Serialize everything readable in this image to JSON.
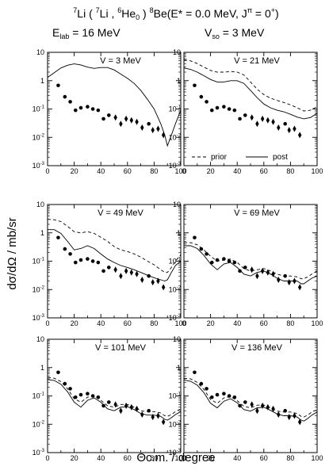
{
  "title": {
    "line1": {
      "sup_a": "7",
      "a": "Li ( ",
      "sup_b": "7",
      "b": "Li , ",
      "sup_c": "6",
      "c": "He",
      "sub_c": "0",
      "d": " ) ",
      "sup_e": "8",
      "e": "Be(E* = 0.0 MeV, J",
      "sup_f": "π",
      "f": " = 0",
      "sup_g": "+",
      "g": ")"
    },
    "line2": {
      "a": "E",
      "sub_a": "lab",
      "b": " = 16 MeV",
      "c": "V",
      "sub_c": "so",
      "d": " = 3 MeV"
    }
  },
  "y_axis_label": "dσ/dΩ  /  mb/sr",
  "x_axis_label": "Θc.m. / degree",
  "legend": {
    "prior": "prior",
    "post": "post"
  },
  "colors": {
    "ink": "#000000",
    "background": "#ffffff"
  },
  "chart_data": [
    {
      "type": "line",
      "label": "V = 3 MeV",
      "xlim": [
        0,
        100
      ],
      "ylim": [
        0.001,
        10
      ],
      "yscale": "log",
      "xticks": [
        0,
        20,
        40,
        60,
        80,
        100
      ],
      "yticks": [
        0.001,
        0.01,
        0.1,
        1,
        10
      ],
      "ytick_labels": [
        "10-3",
        "10-2",
        "10-1",
        "1",
        "10"
      ],
      "data_points": [
        [
          8,
          0.68
        ],
        [
          13,
          0.27
        ],
        [
          17,
          0.18
        ],
        [
          21,
          0.09
        ],
        [
          25,
          0.11
        ],
        [
          30,
          0.12
        ],
        [
          34,
          0.1
        ],
        [
          38,
          0.09
        ],
        [
          42,
          0.045
        ],
        [
          46,
          0.06
        ],
        [
          51,
          0.05
        ],
        [
          55,
          0.03
        ],
        [
          59,
          0.045
        ],
        [
          63,
          0.04
        ],
        [
          67,
          0.035
        ],
        [
          71,
          0.022
        ],
        [
          76,
          0.03
        ],
        [
          79,
          0.018
        ],
        [
          83,
          0.02
        ],
        [
          87,
          0.012
        ]
      ],
      "series": [
        {
          "name": "post",
          "dash": "solid",
          "x": [
            0,
            5,
            10,
            15,
            20,
            25,
            30,
            35,
            40,
            45,
            50,
            55,
            60,
            65,
            70,
            75,
            80,
            85,
            88,
            90,
            93,
            96,
            100
          ],
          "y": [
            1.3,
            1.9,
            2.8,
            3.5,
            3.9,
            3.6,
            3.0,
            2.7,
            2.9,
            2.9,
            2.4,
            1.7,
            1.2,
            0.8,
            0.45,
            0.22,
            0.1,
            0.03,
            0.012,
            0.005,
            0.012,
            0.03,
            0.09
          ]
        }
      ]
    },
    {
      "type": "line",
      "label": "V = 21 MeV",
      "xlim": [
        0,
        100
      ],
      "ylim": [
        0.001,
        10
      ],
      "yscale": "log",
      "xticks": [
        0,
        20,
        40,
        60,
        80,
        100
      ],
      "yticks": [
        0.001,
        0.01,
        0.1,
        1,
        10
      ],
      "ytick_labels": [
        "10-3",
        "10-2",
        "10-1",
        "1",
        "10"
      ],
      "legend": true,
      "data_points": [
        [
          8,
          0.68
        ],
        [
          13,
          0.27
        ],
        [
          17,
          0.18
        ],
        [
          21,
          0.09
        ],
        [
          25,
          0.11
        ],
        [
          30,
          0.12
        ],
        [
          34,
          0.1
        ],
        [
          38,
          0.09
        ],
        [
          42,
          0.045
        ],
        [
          46,
          0.06
        ],
        [
          51,
          0.05
        ],
        [
          55,
          0.03
        ],
        [
          59,
          0.045
        ],
        [
          63,
          0.04
        ],
        [
          67,
          0.035
        ],
        [
          71,
          0.022
        ],
        [
          76,
          0.03
        ],
        [
          79,
          0.018
        ],
        [
          83,
          0.02
        ],
        [
          87,
          0.012
        ]
      ],
      "series": [
        {
          "name": "prior",
          "dash": "dashed",
          "x": [
            0,
            5,
            10,
            15,
            20,
            25,
            30,
            35,
            40,
            45,
            50,
            55,
            60,
            65,
            70,
            75,
            80,
            85,
            90,
            95,
            100
          ],
          "y": [
            5.5,
            5.0,
            4.0,
            3.0,
            2.3,
            2.0,
            2.0,
            2.1,
            2.0,
            1.6,
            0.9,
            0.5,
            0.32,
            0.24,
            0.2,
            0.17,
            0.14,
            0.11,
            0.085,
            0.09,
            0.12
          ]
        },
        {
          "name": "post",
          "dash": "solid",
          "x": [
            0,
            5,
            10,
            15,
            20,
            25,
            30,
            35,
            40,
            45,
            50,
            55,
            60,
            65,
            70,
            75,
            80,
            85,
            90,
            95,
            100
          ],
          "y": [
            2.8,
            2.5,
            2.0,
            1.5,
            1.1,
            0.9,
            0.9,
            1.0,
            1.0,
            0.8,
            0.45,
            0.25,
            0.15,
            0.11,
            0.09,
            0.08,
            0.065,
            0.052,
            0.045,
            0.05,
            0.07
          ]
        }
      ]
    },
    {
      "type": "line",
      "label": "V = 49 MeV",
      "xlim": [
        0,
        100
      ],
      "ylim": [
        0.001,
        10
      ],
      "yscale": "log",
      "xticks": [
        0,
        20,
        40,
        60,
        80,
        100
      ],
      "yticks": [
        0.001,
        0.01,
        0.1,
        1,
        10
      ],
      "ytick_labels": [
        "10-3",
        "10-2",
        "10-1",
        "1",
        "10"
      ],
      "data_points": [
        [
          8,
          0.68
        ],
        [
          13,
          0.27
        ],
        [
          17,
          0.18
        ],
        [
          21,
          0.09
        ],
        [
          25,
          0.11
        ],
        [
          30,
          0.12
        ],
        [
          34,
          0.1
        ],
        [
          38,
          0.09
        ],
        [
          42,
          0.045
        ],
        [
          46,
          0.06
        ],
        [
          51,
          0.05
        ],
        [
          55,
          0.03
        ],
        [
          59,
          0.045
        ],
        [
          63,
          0.04
        ],
        [
          67,
          0.035
        ],
        [
          71,
          0.022
        ],
        [
          76,
          0.03
        ],
        [
          79,
          0.018
        ],
        [
          83,
          0.02
        ],
        [
          87,
          0.012
        ]
      ],
      "series": [
        {
          "name": "prior",
          "dash": "dashed",
          "x": [
            0,
            5,
            10,
            15,
            20,
            25,
            30,
            35,
            40,
            45,
            50,
            55,
            60,
            65,
            70,
            75,
            80,
            85,
            88,
            90,
            93,
            96,
            100
          ],
          "y": [
            3.0,
            2.9,
            2.5,
            1.7,
            1.1,
            1.0,
            1.1,
            0.95,
            0.7,
            0.5,
            0.33,
            0.25,
            0.22,
            0.18,
            0.14,
            0.1,
            0.075,
            0.05,
            0.04,
            0.04,
            0.06,
            0.1,
            0.17
          ]
        },
        {
          "name": "post",
          "dash": "solid",
          "x": [
            0,
            5,
            10,
            15,
            20,
            25,
            30,
            35,
            40,
            45,
            50,
            55,
            60,
            65,
            70,
            75,
            80,
            85,
            88,
            90,
            93,
            96,
            100
          ],
          "y": [
            1.3,
            1.3,
            0.95,
            0.5,
            0.25,
            0.28,
            0.35,
            0.28,
            0.18,
            0.12,
            0.09,
            0.07,
            0.06,
            0.05,
            0.04,
            0.032,
            0.026,
            0.022,
            0.02,
            0.022,
            0.04,
            0.07,
            0.1
          ]
        }
      ]
    },
    {
      "type": "line",
      "label": "V = 69 MeV",
      "xlim": [
        0,
        100
      ],
      "ylim": [
        0.001,
        10
      ],
      "yscale": "log",
      "xticks": [
        0,
        20,
        40,
        60,
        80,
        100
      ],
      "yticks": [
        0.001,
        0.01,
        0.1,
        1,
        10
      ],
      "ytick_labels": [
        "10-3",
        "10-2",
        "10-1",
        "1",
        "10"
      ],
      "data_points": [
        [
          8,
          0.68
        ],
        [
          13,
          0.27
        ],
        [
          17,
          0.18
        ],
        [
          21,
          0.09
        ],
        [
          25,
          0.11
        ],
        [
          30,
          0.12
        ],
        [
          34,
          0.1
        ],
        [
          38,
          0.09
        ],
        [
          42,
          0.045
        ],
        [
          46,
          0.06
        ],
        [
          51,
          0.05
        ],
        [
          55,
          0.03
        ],
        [
          59,
          0.045
        ],
        [
          63,
          0.04
        ],
        [
          67,
          0.035
        ],
        [
          71,
          0.022
        ],
        [
          76,
          0.03
        ],
        [
          79,
          0.018
        ],
        [
          83,
          0.02
        ],
        [
          87,
          0.012
        ]
      ],
      "series": [
        {
          "name": "prior",
          "dash": "dashed",
          "x": [
            0,
            5,
            10,
            15,
            20,
            25,
            30,
            35,
            40,
            45,
            50,
            55,
            60,
            65,
            70,
            75,
            80,
            85,
            88,
            90,
            93,
            96,
            100
          ],
          "y": [
            0.45,
            0.45,
            0.38,
            0.25,
            0.15,
            0.1,
            0.11,
            0.12,
            0.09,
            0.055,
            0.045,
            0.05,
            0.055,
            0.045,
            0.035,
            0.03,
            0.03,
            0.028,
            0.024,
            0.024,
            0.028,
            0.035,
            0.045
          ]
        },
        {
          "name": "post",
          "dash": "solid",
          "x": [
            0,
            5,
            10,
            15,
            20,
            25,
            30,
            35,
            40,
            45,
            50,
            55,
            60,
            65,
            70,
            75,
            80,
            85,
            88,
            90,
            93,
            96,
            100
          ],
          "y": [
            0.35,
            0.35,
            0.28,
            0.16,
            0.08,
            0.05,
            0.08,
            0.09,
            0.06,
            0.035,
            0.03,
            0.04,
            0.045,
            0.035,
            0.025,
            0.02,
            0.02,
            0.02,
            0.016,
            0.016,
            0.02,
            0.025,
            0.03
          ]
        }
      ]
    },
    {
      "type": "line",
      "label": "V = 101 MeV",
      "xlim": [
        0,
        100
      ],
      "ylim": [
        0.001,
        10
      ],
      "yscale": "log",
      "xticks": [
        0,
        20,
        40,
        60,
        80,
        100
      ],
      "yticks": [
        0.001,
        0.01,
        0.1,
        1,
        10
      ],
      "ytick_labels": [
        "10-3",
        "10-2",
        "10-1",
        "1",
        "10"
      ],
      "data_points": [
        [
          8,
          0.68
        ],
        [
          13,
          0.27
        ],
        [
          17,
          0.18
        ],
        [
          21,
          0.09
        ],
        [
          25,
          0.11
        ],
        [
          30,
          0.12
        ],
        [
          34,
          0.1
        ],
        [
          38,
          0.09
        ],
        [
          42,
          0.045
        ],
        [
          46,
          0.06
        ],
        [
          51,
          0.05
        ],
        [
          55,
          0.03
        ],
        [
          59,
          0.045
        ],
        [
          63,
          0.04
        ],
        [
          67,
          0.035
        ],
        [
          71,
          0.022
        ],
        [
          76,
          0.03
        ],
        [
          79,
          0.018
        ],
        [
          83,
          0.02
        ],
        [
          87,
          0.012
        ]
      ],
      "series": [
        {
          "name": "prior",
          "dash": "dashed",
          "x": [
            0,
            5,
            10,
            15,
            20,
            25,
            30,
            35,
            40,
            45,
            50,
            55,
            60,
            65,
            70,
            75,
            80,
            85,
            88,
            90,
            93,
            96,
            100
          ],
          "y": [
            0.45,
            0.42,
            0.32,
            0.18,
            0.08,
            0.06,
            0.09,
            0.1,
            0.07,
            0.045,
            0.04,
            0.05,
            0.05,
            0.04,
            0.03,
            0.028,
            0.028,
            0.025,
            0.02,
            0.019,
            0.022,
            0.028,
            0.035
          ]
        },
        {
          "name": "post",
          "dash": "solid",
          "x": [
            0,
            5,
            10,
            15,
            20,
            25,
            30,
            35,
            40,
            45,
            50,
            55,
            60,
            65,
            70,
            75,
            80,
            85,
            88,
            90,
            93,
            96,
            100
          ],
          "y": [
            0.38,
            0.35,
            0.26,
            0.14,
            0.06,
            0.04,
            0.07,
            0.085,
            0.06,
            0.035,
            0.03,
            0.04,
            0.042,
            0.033,
            0.024,
            0.021,
            0.021,
            0.019,
            0.015,
            0.014,
            0.017,
            0.022,
            0.028
          ]
        }
      ]
    },
    {
      "type": "line",
      "label": "V = 136 MeV",
      "xlim": [
        0,
        100
      ],
      "ylim": [
        0.001,
        10
      ],
      "yscale": "log",
      "xticks": [
        0,
        20,
        40,
        60,
        80,
        100
      ],
      "yticks": [
        0.001,
        0.01,
        0.1,
        1,
        10
      ],
      "ytick_labels": [
        "10-3",
        "10-2",
        "10-1",
        "1",
        "10"
      ],
      "data_points": [
        [
          8,
          0.68
        ],
        [
          13,
          0.27
        ],
        [
          17,
          0.18
        ],
        [
          21,
          0.09
        ],
        [
          25,
          0.11
        ],
        [
          30,
          0.12
        ],
        [
          34,
          0.1
        ],
        [
          38,
          0.09
        ],
        [
          42,
          0.045
        ],
        [
          46,
          0.06
        ],
        [
          51,
          0.05
        ],
        [
          55,
          0.03
        ],
        [
          59,
          0.045
        ],
        [
          63,
          0.04
        ],
        [
          67,
          0.035
        ],
        [
          71,
          0.022
        ],
        [
          76,
          0.03
        ],
        [
          79,
          0.018
        ],
        [
          83,
          0.02
        ],
        [
          87,
          0.012
        ]
      ],
      "series": [
        {
          "name": "prior",
          "dash": "dashed",
          "x": [
            0,
            5,
            10,
            15,
            20,
            25,
            30,
            35,
            40,
            45,
            50,
            55,
            60,
            65,
            70,
            75,
            80,
            85,
            88,
            90,
            93,
            96,
            100
          ],
          "y": [
            0.42,
            0.4,
            0.3,
            0.17,
            0.075,
            0.055,
            0.085,
            0.095,
            0.068,
            0.043,
            0.038,
            0.047,
            0.048,
            0.038,
            0.029,
            0.027,
            0.027,
            0.024,
            0.019,
            0.018,
            0.021,
            0.027,
            0.033
          ]
        },
        {
          "name": "post",
          "dash": "solid",
          "x": [
            0,
            5,
            10,
            15,
            20,
            25,
            30,
            35,
            40,
            45,
            50,
            55,
            60,
            65,
            70,
            75,
            80,
            85,
            88,
            90,
            93,
            96,
            100
          ],
          "y": [
            0.36,
            0.33,
            0.24,
            0.13,
            0.055,
            0.038,
            0.065,
            0.08,
            0.057,
            0.033,
            0.029,
            0.038,
            0.04,
            0.031,
            0.023,
            0.02,
            0.02,
            0.018,
            0.014,
            0.013,
            0.016,
            0.021,
            0.027
          ]
        }
      ]
    }
  ]
}
